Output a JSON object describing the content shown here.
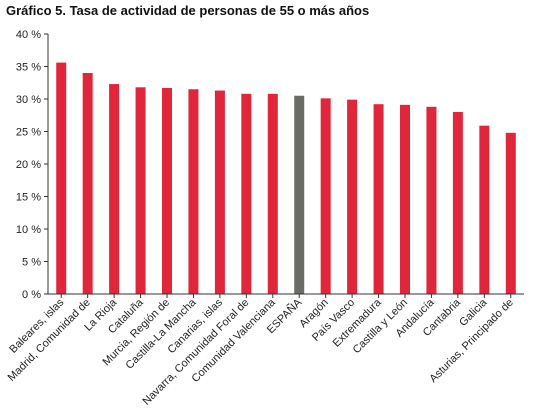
{
  "chart_data": {
    "type": "bar",
    "title": "Gráfico 5. Tasa de actividad de personas de 55 o más años",
    "xlabel": "",
    "ylabel": "",
    "ylim": [
      0,
      40
    ],
    "y_ticks": [
      0,
      5,
      10,
      15,
      20,
      25,
      30,
      35,
      40
    ],
    "y_tick_labels": [
      "0 %",
      "5 %",
      "10 %",
      "15 %",
      "20 %",
      "25 %",
      "30 %",
      "35 %",
      "40 %"
    ],
    "grid": false,
    "categories": [
      "Baleares, islas",
      "Madrid, Comunidad de",
      "La Rioja",
      "Cataluña",
      "Murcia, Región de",
      "Castilla-La Mancha",
      "Canarias, islas",
      "Navarra, Comunidad Foral de",
      "Comunidad Valenciana",
      "ESPAÑA",
      "Aragón",
      "País Vasco",
      "Extremadura",
      "Castilla y León",
      "Andalucía",
      "Cantabria",
      "Galicia",
      "Asturias, Principado de"
    ],
    "values": [
      35.6,
      34.0,
      32.3,
      31.8,
      31.7,
      31.5,
      31.3,
      30.8,
      30.8,
      30.5,
      30.1,
      29.9,
      29.2,
      29.1,
      28.8,
      28.0,
      25.9,
      24.8
    ],
    "highlight_category": "ESPAÑA",
    "colors": {
      "bar": "#e0263a",
      "highlight": "#6b6b66",
      "axis": "#333333",
      "text": "#222222"
    }
  }
}
